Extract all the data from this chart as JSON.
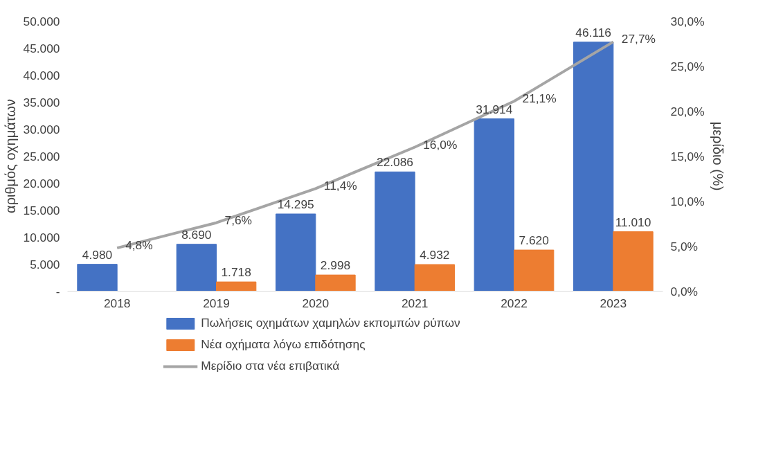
{
  "chart_data": {
    "type": "bar",
    "ylabel": "αριθμός οχημάτων",
    "y2label": "μερίδιο (%)",
    "categories": [
      "2018",
      "2019",
      "2020",
      "2021",
      "2022",
      "2023"
    ],
    "series": [
      {
        "name": "Πωλήσεις οχημάτων χαμηλών εκπομπών ρύπων",
        "color": "#4472c4",
        "values": [
          4980,
          8690,
          14295,
          22086,
          31914,
          46116
        ],
        "value_labels": [
          "4.980",
          "8.690",
          "14.295",
          "22.086",
          "31.914",
          "46.116"
        ]
      },
      {
        "name": "Νέα οχήματα λόγω επιδότησης",
        "color": "#ed7d31",
        "values": [
          null,
          1718,
          2998,
          4932,
          7620,
          11010
        ],
        "value_labels": [
          null,
          "1.718",
          "2.998",
          "4.932",
          "7.620",
          "11.010"
        ]
      },
      {
        "name": "Μερίδιο στα νέα επιβατικά",
        "type": "line",
        "axis": "y2",
        "color": "#a5a5a5",
        "values": [
          4.8,
          7.6,
          11.4,
          16.0,
          21.1,
          27.7
        ],
        "value_labels": [
          "4,8%",
          "7,6%",
          "11,4%",
          "16,0%",
          "21,1%",
          "27,7%"
        ]
      }
    ],
    "ylim": [
      0,
      50000
    ],
    "yticks": [
      {
        "value": 0,
        "label": "-"
      },
      {
        "value": 5000,
        "label": "5.000"
      },
      {
        "value": 10000,
        "label": "10.000"
      },
      {
        "value": 15000,
        "label": "15.000"
      },
      {
        "value": 20000,
        "label": "20.000"
      },
      {
        "value": 25000,
        "label": "25.000"
      },
      {
        "value": 30000,
        "label": "30.000"
      },
      {
        "value": 35000,
        "label": "35.000"
      },
      {
        "value": 40000,
        "label": "40.000"
      },
      {
        "value": 45000,
        "label": "45.000"
      },
      {
        "value": 50000,
        "label": "50.000"
      }
    ],
    "y2lim": [
      0,
      30
    ],
    "y2ticks": [
      {
        "value": 0,
        "label": "0,0%"
      },
      {
        "value": 5,
        "label": "5,0%"
      },
      {
        "value": 10,
        "label": "10,0%"
      },
      {
        "value": 15,
        "label": "15,0%"
      },
      {
        "value": 20,
        "label": "20,0%"
      },
      {
        "value": 25,
        "label": "25,0%"
      },
      {
        "value": 30,
        "label": "30,0%"
      }
    ],
    "grid": false,
    "legend": "bottom",
    "marker": "none",
    "line_style": "solid"
  }
}
